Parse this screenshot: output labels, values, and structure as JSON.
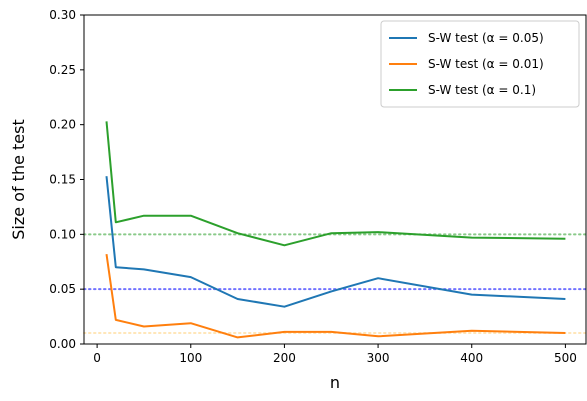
{
  "chart_data": {
    "type": "line",
    "xlabel": "n",
    "ylabel": "Size of the test",
    "xlim": [
      -14,
      522
    ],
    "ylim": [
      0.0,
      0.3
    ],
    "x_ticks": [
      0,
      100,
      200,
      300,
      400,
      500
    ],
    "y_ticks": [
      0.0,
      0.05,
      0.1,
      0.15,
      0.2,
      0.25,
      0.3
    ],
    "x_tick_labels": [
      "0",
      "100",
      "200",
      "300",
      "400",
      "500"
    ],
    "y_tick_labels": [
      "0.00",
      "0.05",
      "0.10",
      "0.15",
      "0.20",
      "0.25",
      "0.30"
    ],
    "x": [
      10,
      20,
      50,
      100,
      150,
      200,
      250,
      300,
      400,
      500
    ],
    "series": [
      {
        "name": "S-W test (α = 0.05)",
        "color": "#1f77b4",
        "values": [
          0.153,
          0.07,
          0.068,
          0.061,
          0.041,
          0.034,
          0.048,
          0.06,
          0.045,
          0.041
        ]
      },
      {
        "name": "S-W test (α = 0.01)",
        "color": "#ff7f0e",
        "values": [
          0.082,
          0.022,
          0.016,
          0.019,
          0.006,
          0.011,
          0.011,
          0.007,
          0.012,
          0.01
        ]
      },
      {
        "name": "S-W test (α = 0.1)",
        "color": "#2ca02c",
        "values": [
          0.203,
          0.111,
          0.117,
          0.117,
          0.101,
          0.09,
          0.101,
          0.102,
          0.097,
          0.096
        ]
      }
    ],
    "reference_lines": [
      {
        "y": 0.1,
        "color": "#2ca02c",
        "style": "dotted"
      },
      {
        "y": 0.05,
        "color": "#0000ff",
        "style": "dotted"
      },
      {
        "y": 0.01,
        "color": "#ffd27f",
        "style": "dotted"
      }
    ],
    "legend_position": "top-right",
    "grid": false
  }
}
